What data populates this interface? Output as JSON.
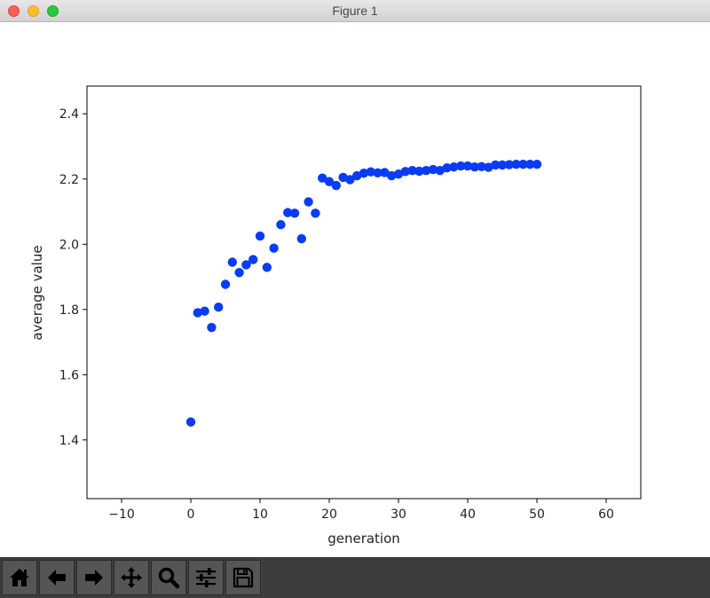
{
  "window": {
    "title": "Figure 1"
  },
  "toolbar": {
    "buttons": [
      {
        "name": "home-button",
        "icon": "home-icon"
      },
      {
        "name": "back-button",
        "icon": "arrow-left-icon"
      },
      {
        "name": "forward-button",
        "icon": "arrow-right-icon"
      },
      {
        "name": "pan-button",
        "icon": "move-icon"
      },
      {
        "name": "zoom-button",
        "icon": "magnifier-icon"
      },
      {
        "name": "configure-subplots-button",
        "icon": "sliders-icon"
      },
      {
        "name": "save-button",
        "icon": "floppy-disk-icon"
      }
    ]
  },
  "chart_data": {
    "type": "scatter",
    "xlabel": "generation",
    "ylabel": "average value",
    "xlim": [
      -15,
      65
    ],
    "ylim": [
      1.22,
      2.485
    ],
    "xticks": [
      -10,
      0,
      10,
      20,
      30,
      40,
      50,
      60
    ],
    "xtick_labels": [
      "−10",
      "0",
      "10",
      "20",
      "30",
      "40",
      "50",
      "60"
    ],
    "yticks": [
      1.4,
      1.6,
      1.8,
      2.0,
      2.2,
      2.4
    ],
    "ytick_labels": [
      "1.4",
      "1.6",
      "1.8",
      "2.0",
      "2.2",
      "2.4"
    ],
    "grid": false,
    "marker_color": "#0a3cf5",
    "x": [
      0,
      1,
      2,
      3,
      4,
      5,
      6,
      7,
      8,
      9,
      10,
      11,
      12,
      13,
      14,
      15,
      16,
      17,
      18,
      19,
      20,
      21,
      22,
      23,
      24,
      25,
      26,
      27,
      28,
      29,
      30,
      31,
      32,
      33,
      34,
      35,
      36,
      37,
      38,
      39,
      40,
      41,
      42,
      43,
      44,
      45,
      46,
      47,
      48,
      49,
      50
    ],
    "y": [
      1.455,
      1.79,
      1.795,
      1.745,
      1.807,
      1.877,
      1.945,
      1.913,
      1.937,
      1.953,
      2.025,
      1.929,
      1.988,
      2.06,
      2.097,
      2.095,
      2.017,
      2.13,
      2.095,
      2.203,
      2.192,
      2.18,
      2.205,
      2.198,
      2.21,
      2.218,
      2.222,
      2.219,
      2.22,
      2.21,
      2.215,
      2.223,
      2.226,
      2.224,
      2.226,
      2.229,
      2.226,
      2.234,
      2.237,
      2.24,
      2.24,
      2.237,
      2.238,
      2.236,
      2.243,
      2.243,
      2.244,
      2.245,
      2.245,
      2.245,
      2.245
    ]
  }
}
